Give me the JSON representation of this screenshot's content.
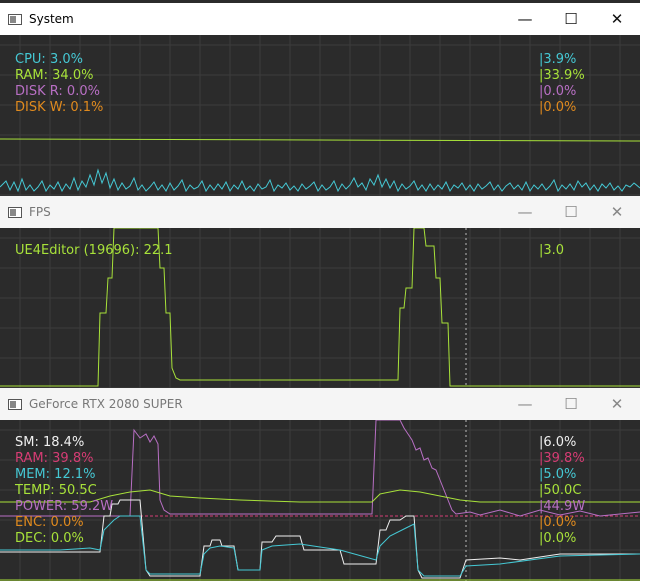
{
  "windows": {
    "system": {
      "title": "System",
      "metrics": [
        {
          "label": "CPU:",
          "value": "3.0%",
          "max": "|3.9%",
          "color": "#45c8d4"
        },
        {
          "label": "RAM:",
          "value": "34.0%",
          "max": "|33.9%",
          "color": "#a8e23a"
        },
        {
          "label": "DISK R:",
          "value": "0.0%",
          "max": "|0.0%",
          "color": "#b86fc4"
        },
        {
          "label": "DISK W:",
          "value": "0.1%",
          "max": "|0.0%",
          "color": "#e08a1e"
        }
      ]
    },
    "fps": {
      "title": "FPS",
      "metrics": [
        {
          "label": "UE4Editor (19696):",
          "value": "22.1",
          "max": "|3.0",
          "color": "#a8e23a"
        }
      ]
    },
    "gpu": {
      "title": "GeForce RTX 2080 SUPER",
      "metrics": [
        {
          "label": "SM:",
          "value": "18.4%",
          "max": "|6.0%",
          "color": "#f0f0f0"
        },
        {
          "label": "RAM:",
          "value": "39.8%",
          "max": "|39.8%",
          "color": "#d63c74"
        },
        {
          "label": "MEM:",
          "value": "12.1%",
          "max": "|5.0%",
          "color": "#45c8d4"
        },
        {
          "label": "TEMP:",
          "value": "50.5C",
          "max": "|50.0C",
          "color": "#a8e23a"
        },
        {
          "label": "POWER:",
          "value": "59.2W",
          "max": "|44.9W",
          "color": "#b86fc4"
        },
        {
          "label": "ENC:",
          "value": "0.0%",
          "max": "|0.0%",
          "color": "#e08a1e"
        },
        {
          "label": "DEC:",
          "value": "0.0%",
          "max": "|0.0%",
          "color": "#a8e23a"
        }
      ]
    }
  },
  "controls": {
    "minimize": "—",
    "maximize": "☐",
    "close": "✕"
  },
  "colors": {
    "grid": "#3d3d3d",
    "background": "#2b2b2b",
    "cursor": "#bbbbbb"
  }
}
